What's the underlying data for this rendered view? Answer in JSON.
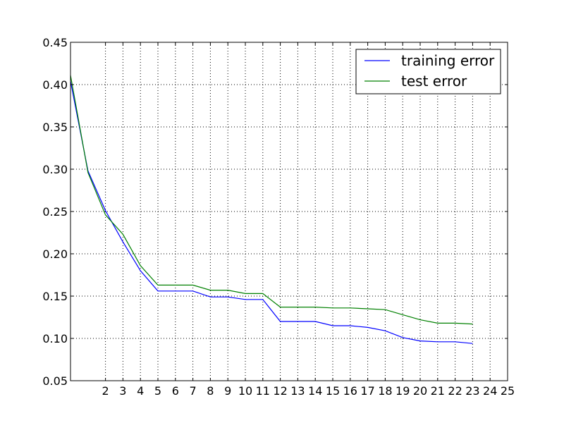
{
  "chart_data": {
    "type": "line",
    "title": "",
    "xlabel": "",
    "ylabel": "",
    "xlim": [
      0,
      25
    ],
    "ylim": [
      0.05,
      0.45
    ],
    "grid": true,
    "legend_position": "top-right",
    "x_ticks": [
      "2",
      "3",
      "4",
      "5",
      "6",
      "7",
      "8",
      "9",
      "10",
      "11",
      "12",
      "13",
      "14",
      "15",
      "16",
      "17",
      "18",
      "19",
      "20",
      "21",
      "22",
      "23",
      "24",
      "25"
    ],
    "y_ticks": [
      "0.05",
      "0.10",
      "0.15",
      "0.20",
      "0.25",
      "0.30",
      "0.35",
      "0.40",
      "0.45"
    ],
    "x": [
      0,
      1,
      2,
      3,
      4,
      5,
      6,
      7,
      8,
      9,
      10,
      11,
      12,
      13,
      14,
      15,
      16,
      17,
      18,
      19,
      20,
      21,
      22,
      23
    ],
    "series": [
      {
        "name": "training error",
        "color": "#0000ff",
        "values": [
          0.404,
          0.298,
          0.251,
          0.214,
          0.18,
          0.156,
          0.156,
          0.156,
          0.149,
          0.149,
          0.146,
          0.146,
          0.12,
          0.12,
          0.12,
          0.115,
          0.115,
          0.113,
          0.109,
          0.101,
          0.097,
          0.096,
          0.096,
          0.094
        ]
      },
      {
        "name": "test error",
        "color": "#008000",
        "values": [
          0.411,
          0.296,
          0.246,
          0.223,
          0.186,
          0.163,
          0.163,
          0.163,
          0.157,
          0.157,
          0.153,
          0.153,
          0.137,
          0.137,
          0.137,
          0.136,
          0.136,
          0.135,
          0.134,
          0.128,
          0.122,
          0.118,
          0.118,
          0.117
        ]
      }
    ]
  }
}
